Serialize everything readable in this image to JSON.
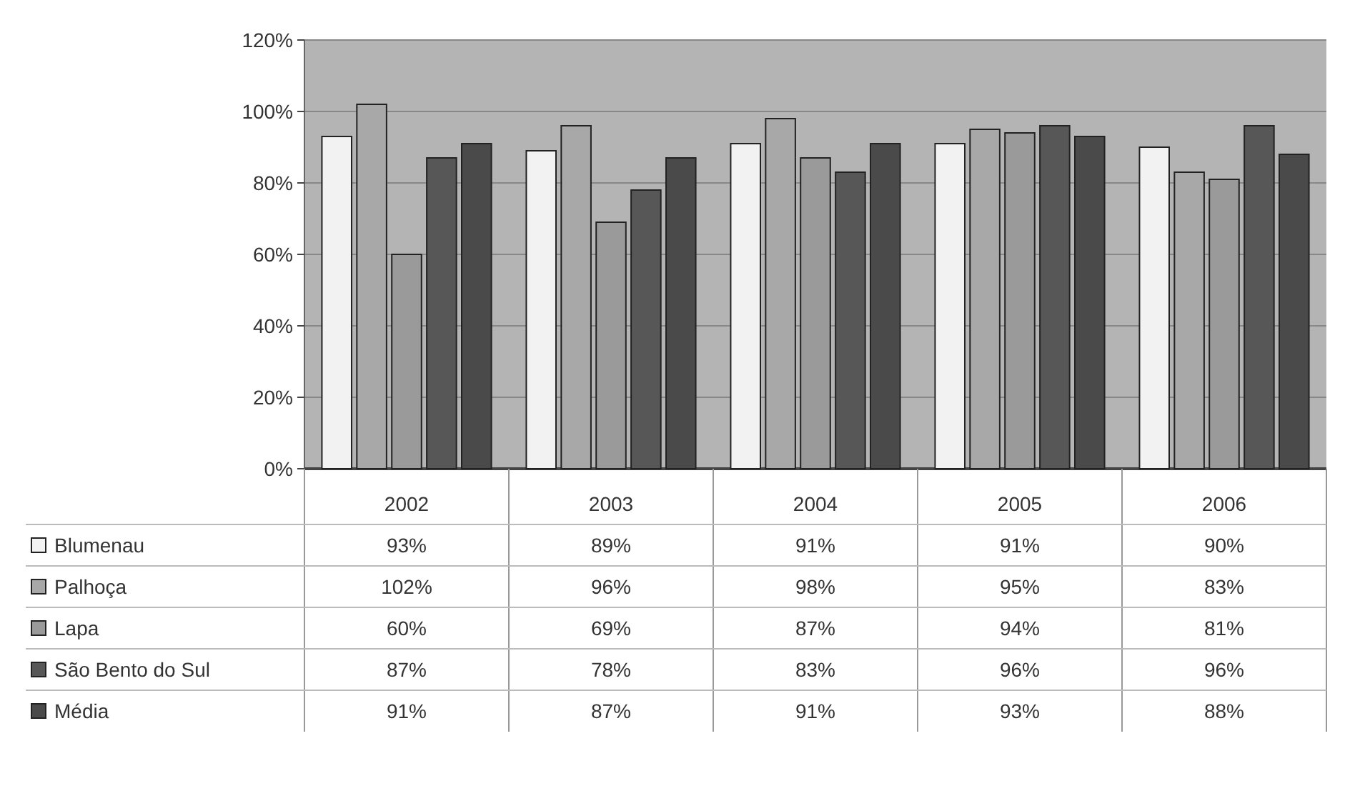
{
  "chart_data": {
    "type": "bar",
    "categories": [
      "2002",
      "2003",
      "2004",
      "2005",
      "2006"
    ],
    "series": [
      {
        "name": "Blumenau",
        "color": "#f2f2f2",
        "values": [
          93,
          89,
          91,
          91,
          90
        ],
        "value_labels": [
          "93%",
          "89%",
          "91%",
          "91%",
          "90%"
        ]
      },
      {
        "name": "Palhoça",
        "color": "#a8a8a8",
        "values": [
          102,
          96,
          98,
          95,
          83
        ],
        "value_labels": [
          "102%",
          "96%",
          "98%",
          "95%",
          "83%"
        ]
      },
      {
        "name": "Lapa",
        "color": "#9a9a9a",
        "values": [
          60,
          69,
          87,
          94,
          81
        ],
        "value_labels": [
          "60%",
          "69%",
          "87%",
          "94%",
          "81%"
        ]
      },
      {
        "name": "São Bento do Sul",
        "color": "#575757",
        "values": [
          87,
          78,
          83,
          96,
          96
        ],
        "value_labels": [
          "87%",
          "78%",
          "83%",
          "96%",
          "96%"
        ]
      },
      {
        "name": "Média",
        "color": "#4a4a4a",
        "values": [
          91,
          87,
          91,
          93,
          88
        ],
        "value_labels": [
          "91%",
          "87%",
          "91%",
          "93%",
          "88%"
        ]
      }
    ],
    "ylim": [
      0,
      120
    ],
    "yticks": [
      {
        "value": 0,
        "label": "0%"
      },
      {
        "value": 20,
        "label": "20%"
      },
      {
        "value": 40,
        "label": "40%"
      },
      {
        "value": 60,
        "label": "60%"
      },
      {
        "value": 80,
        "label": "80%"
      },
      {
        "value": 100,
        "label": "100%"
      },
      {
        "value": 120,
        "label": "120%"
      }
    ],
    "grid": "y",
    "legend": "bottom"
  }
}
